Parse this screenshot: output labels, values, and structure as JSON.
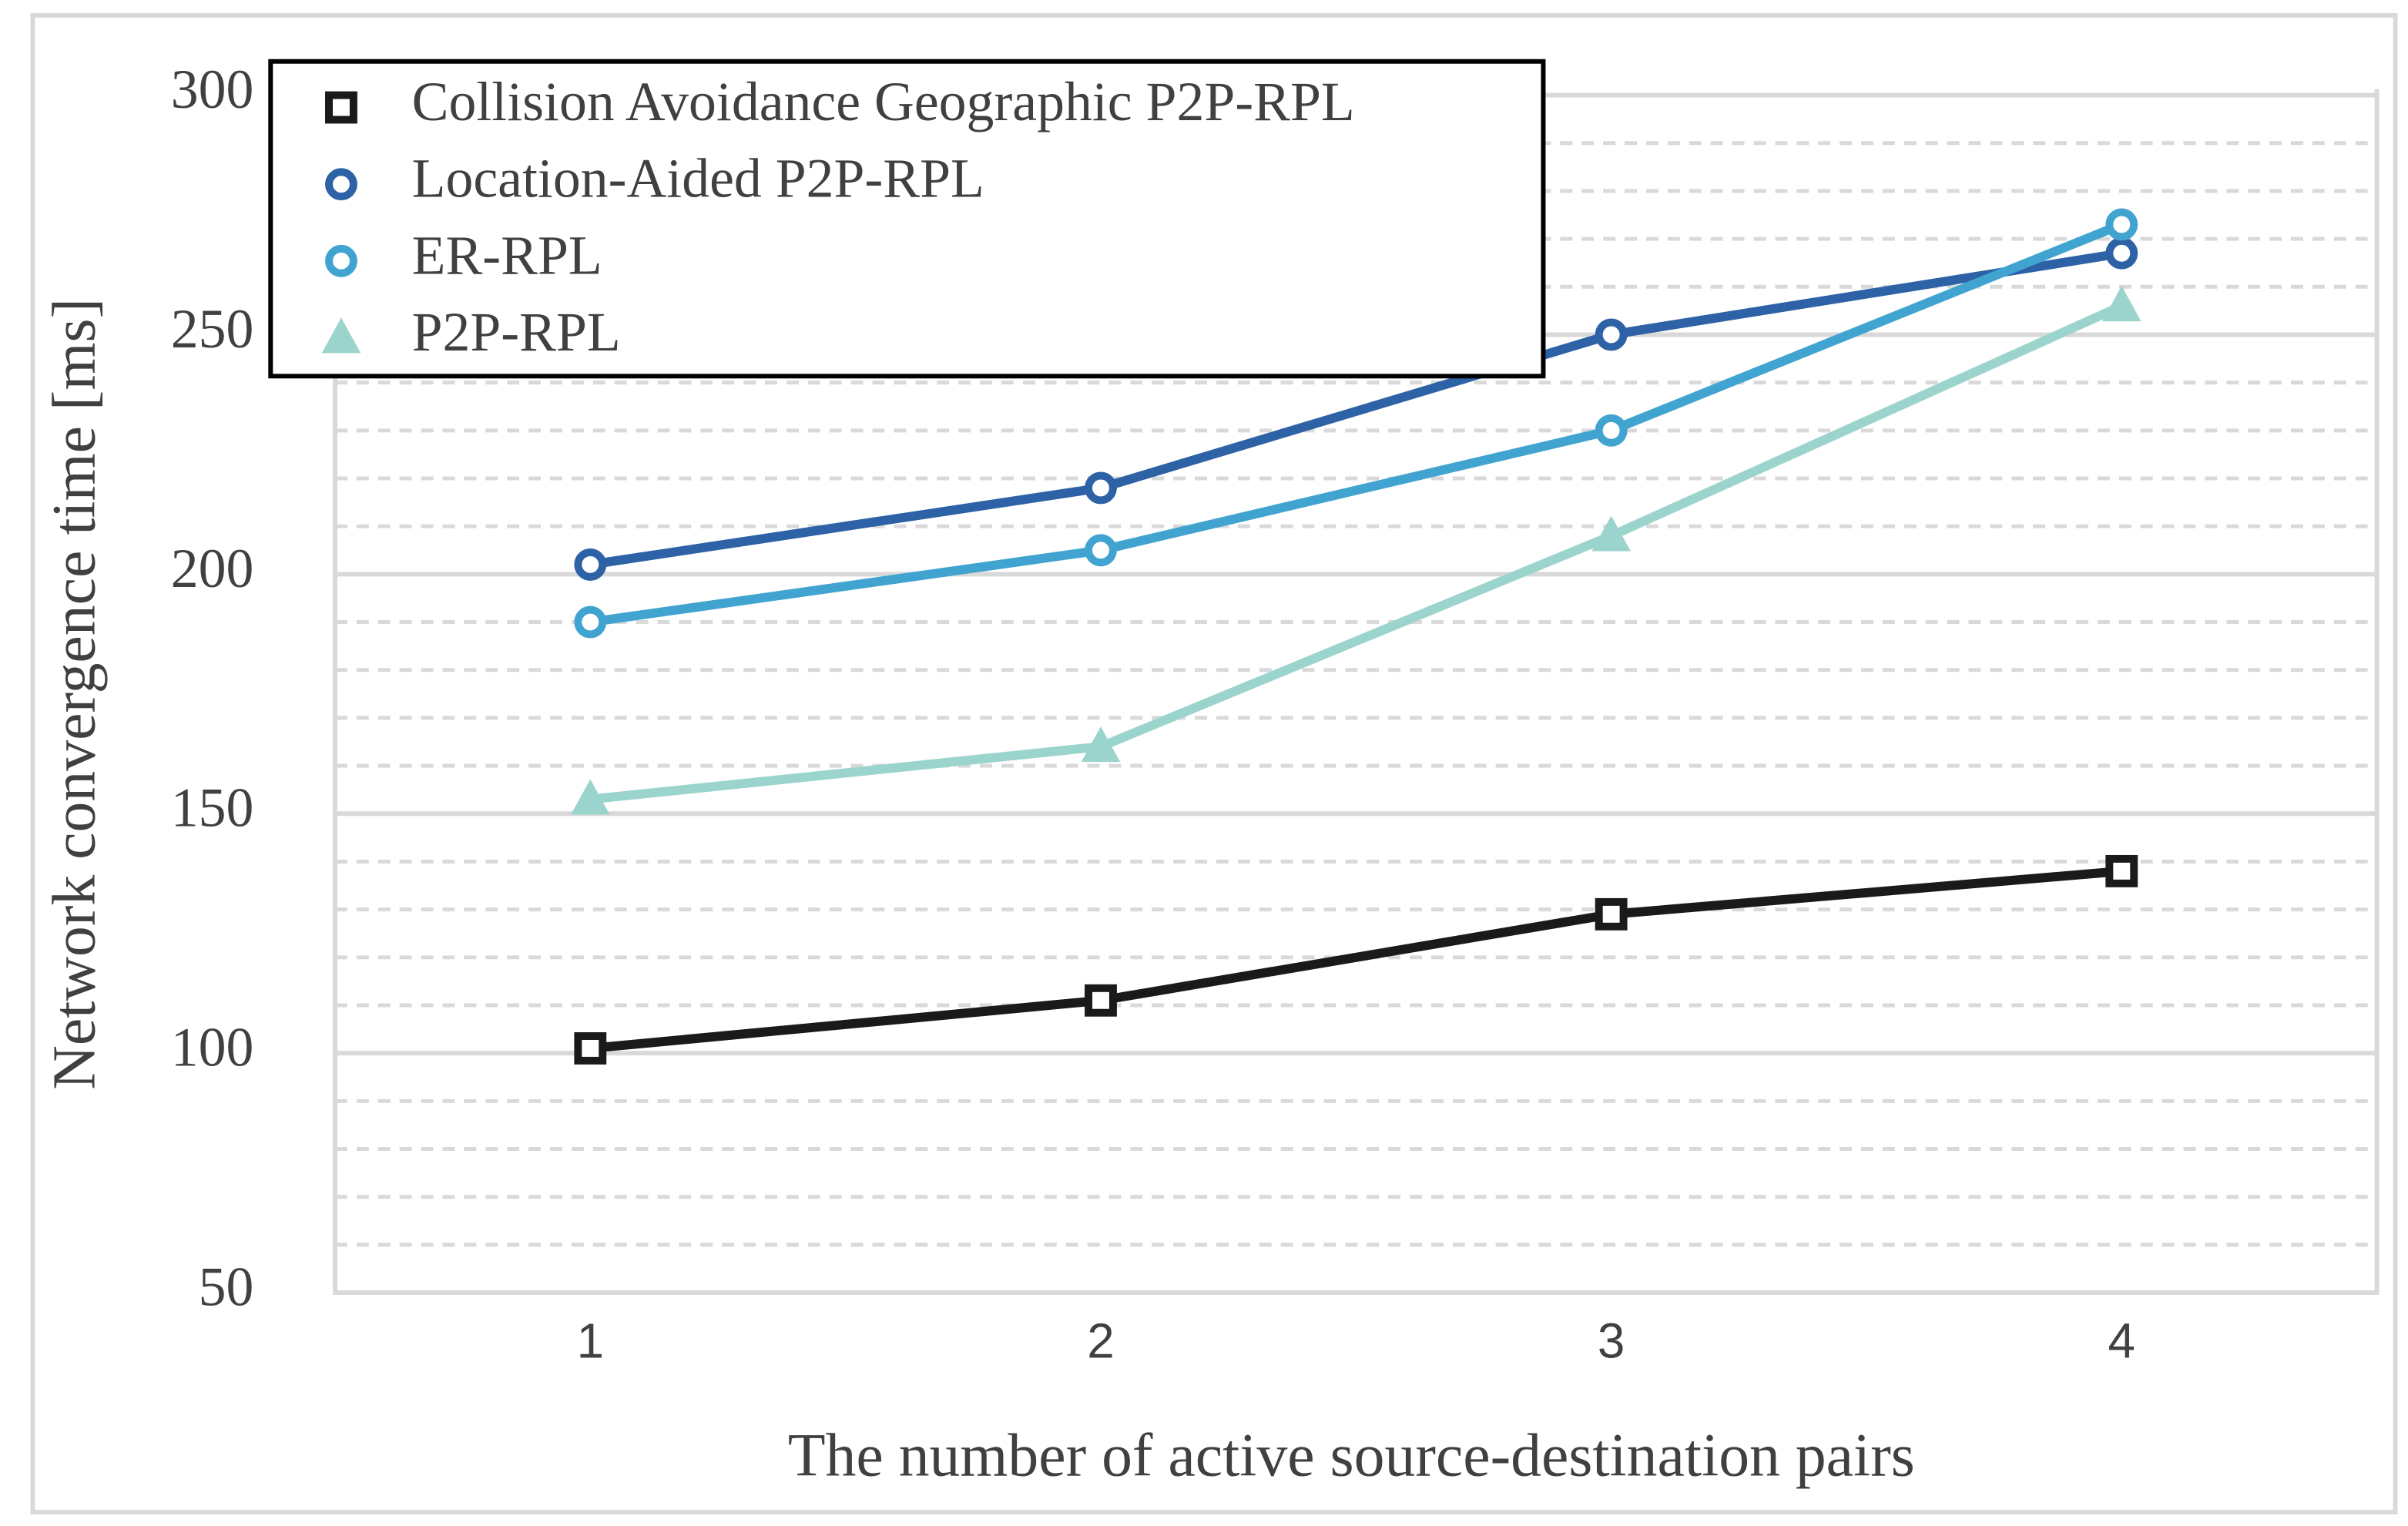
{
  "chart_data": {
    "type": "line",
    "x_label": "The number of active source-destination pairs",
    "y_label": "Network convergence time [ms]",
    "categories": [
      "1",
      "2",
      "3",
      "4"
    ],
    "series": [
      {
        "name": "Collision Avoidance Geographic P2P-RPL",
        "color": "#1a1a1a",
        "marker": "square",
        "values": [
          101,
          111,
          129,
          138
        ]
      },
      {
        "name": "Location-Aided P2P-RPL",
        "color": "#2e62a6",
        "marker": "circle",
        "values": [
          202,
          218,
          250,
          267
        ]
      },
      {
        "name": "ER-RPL",
        "color": "#41a4d0",
        "marker": "circle",
        "values": [
          190,
          205,
          230,
          273
        ]
      },
      {
        "name": "P2P-RPL",
        "color": "#9bd4cc",
        "marker": "triangle",
        "values": [
          153,
          164,
          208,
          256
        ]
      }
    ],
    "ylim": [
      50,
      300
    ],
    "yticks": [
      50,
      100,
      150,
      200,
      250,
      300
    ],
    "yminorticks": [
      60,
      70,
      80,
      90,
      110,
      120,
      130,
      140,
      160,
      170,
      180,
      190,
      210,
      220,
      230,
      240,
      260,
      270,
      280,
      290
    ],
    "grid": true,
    "legend": "top-left"
  }
}
